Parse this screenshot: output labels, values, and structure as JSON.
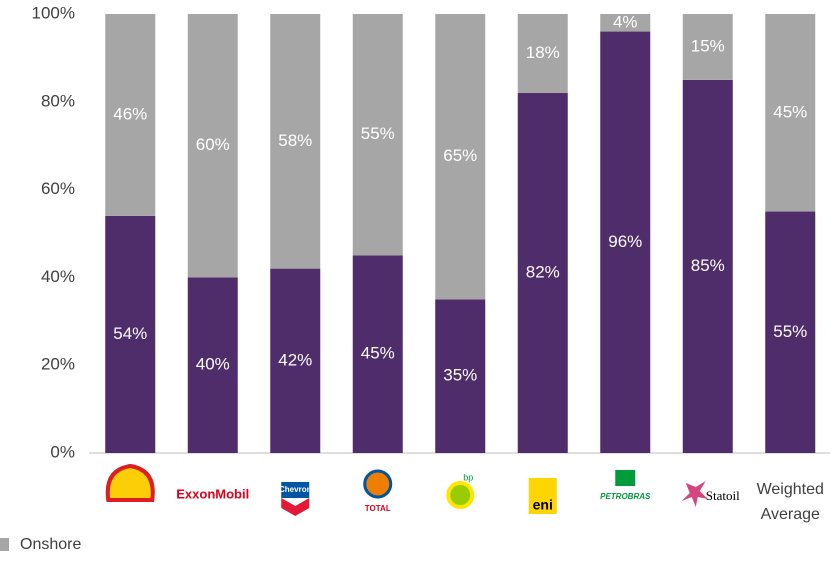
{
  "chart_data": {
    "type": "stacked_bar",
    "categories": [
      null,
      "ExxonMobil",
      "Chevron",
      "TOTAL",
      "bp",
      "eni",
      "PETROBRAS",
      "Statoil",
      "Weighted Average"
    ],
    "series": [
      {
        "color": "#4f2c6a",
        "values": [
          54,
          40,
          42,
          45,
          35,
          82,
          96,
          85,
          55
        ],
        "value_labels": [
          "54%",
          "40%",
          "42%",
          "45%",
          "35%",
          "82%",
          "96%",
          "85%",
          "55%"
        ]
      },
      {
        "name": "Onshore",
        "color": "#a6a6a6",
        "values": [
          46,
          60,
          58,
          55,
          65,
          18,
          4,
          15,
          45
        ],
        "value_labels": [
          "46%",
          "60%",
          "58%",
          "55%",
          "65%",
          "18%",
          "4%",
          "15%",
          "45%"
        ]
      }
    ],
    "ylim": [
      0,
      100
    ],
    "yticks": [
      {
        "value": 0,
        "label": "0%"
      },
      {
        "value": 20,
        "label": "20%"
      },
      {
        "value": 40,
        "label": "40%"
      },
      {
        "value": 60,
        "label": "60%"
      },
      {
        "value": 80,
        "label": "80%"
      },
      {
        "value": 100,
        "label": "100%"
      }
    ]
  }
}
